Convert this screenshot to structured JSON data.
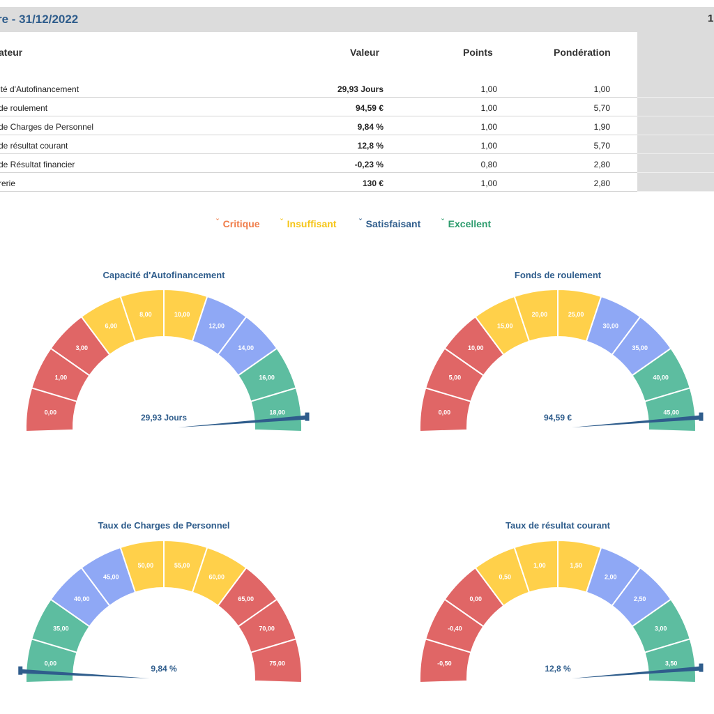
{
  "header": {
    "title": "re - 31/12/2022",
    "right": "1"
  },
  "table": {
    "columns": [
      "ateur",
      "Valeur",
      "Points",
      "Pondération"
    ],
    "rows": [
      {
        "name": "ité d'Autofinancement",
        "value": "29,93 Jours",
        "points": "1,00",
        "weight": "1,00"
      },
      {
        "name": " de roulement",
        "value": "94,59 €",
        "points": "1,00",
        "weight": "5,70"
      },
      {
        "name": "de Charges de Personnel",
        "value": "9,84 %",
        "points": "1,00",
        "weight": "1,90"
      },
      {
        "name": "de résultat courant",
        "value": "12,8 %",
        "points": "1,00",
        "weight": "5,70"
      },
      {
        "name": "de Résultat financier",
        "value": "-0,23 %",
        "points": "0,80",
        "weight": "2,80"
      },
      {
        "name": "rerie",
        "value": "130 €",
        "points": "1,00",
        "weight": "2,80"
      }
    ]
  },
  "legend": [
    {
      "label": "Critique",
      "color": "#f07d4a"
    },
    {
      "label": "Insuffisant",
      "color": "#f5c518"
    },
    {
      "label": "Satisfaisant",
      "color": "#2f5d8c"
    },
    {
      "label": "Excellent",
      "color": "#2e9c6e"
    }
  ],
  "gauges": [
    {
      "title": "Capacité d'Autofinancement",
      "value_label": "29,93 Jours",
      "segments": [
        {
          "label": "0,00",
          "color": "red"
        },
        {
          "label": "1,00",
          "color": "red"
        },
        {
          "label": "3,00",
          "color": "red"
        },
        {
          "label": "6,00",
          "color": "yellow"
        },
        {
          "label": "8,00",
          "color": "yellow"
        },
        {
          "label": "10,00",
          "color": "yellow"
        },
        {
          "label": "12,00",
          "color": "blue"
        },
        {
          "label": "14,00",
          "color": "blue"
        },
        {
          "label": "16,00",
          "color": "green"
        },
        {
          "label": "18,00",
          "color": "green"
        }
      ],
      "needle_side": "right"
    },
    {
      "title": "Fonds de roulement",
      "value_label": "94,59 €",
      "segments": [
        {
          "label": "0,00",
          "color": "red"
        },
        {
          "label": "5,00",
          "color": "red"
        },
        {
          "label": "10,00",
          "color": "red"
        },
        {
          "label": "15,00",
          "color": "yellow"
        },
        {
          "label": "20,00",
          "color": "yellow"
        },
        {
          "label": "25,00",
          "color": "yellow"
        },
        {
          "label": "30,00",
          "color": "blue"
        },
        {
          "label": "35,00",
          "color": "blue"
        },
        {
          "label": "40,00",
          "color": "green"
        },
        {
          "label": "45,00",
          "color": "green"
        }
      ],
      "needle_side": "right"
    },
    {
      "title": "Taux de Charges de Personnel",
      "value_label": "9,84 %",
      "segments": [
        {
          "label": "0,00",
          "color": "green"
        },
        {
          "label": "35,00",
          "color": "green"
        },
        {
          "label": "40,00",
          "color": "blue"
        },
        {
          "label": "45,00",
          "color": "blue"
        },
        {
          "label": "50,00",
          "color": "yellow"
        },
        {
          "label": "55,00",
          "color": "yellow"
        },
        {
          "label": "60,00",
          "color": "yellow"
        },
        {
          "label": "65,00",
          "color": "red"
        },
        {
          "label": "70,00",
          "color": "red"
        },
        {
          "label": "75,00",
          "color": "red"
        }
      ],
      "needle_side": "left"
    },
    {
      "title": "Taux de résultat courant",
      "value_label": "12,8 %",
      "segments": [
        {
          "label": "-0,50",
          "color": "red"
        },
        {
          "label": "-0,40",
          "color": "red"
        },
        {
          "label": "0,00",
          "color": "red"
        },
        {
          "label": "0,50",
          "color": "yellow"
        },
        {
          "label": "1,00",
          "color": "yellow"
        },
        {
          "label": "1,50",
          "color": "yellow"
        },
        {
          "label": "2,00",
          "color": "blue"
        },
        {
          "label": "2,50",
          "color": "blue"
        },
        {
          "label": "3,00",
          "color": "green"
        },
        {
          "label": "3,50",
          "color": "green"
        }
      ],
      "needle_side": "right"
    }
  ],
  "colors": {
    "red": "#e06666",
    "yellow": "#ffd04a",
    "blue": "#8fa8f5",
    "green": "#5dbda0",
    "needle": "#2f5d8c"
  }
}
